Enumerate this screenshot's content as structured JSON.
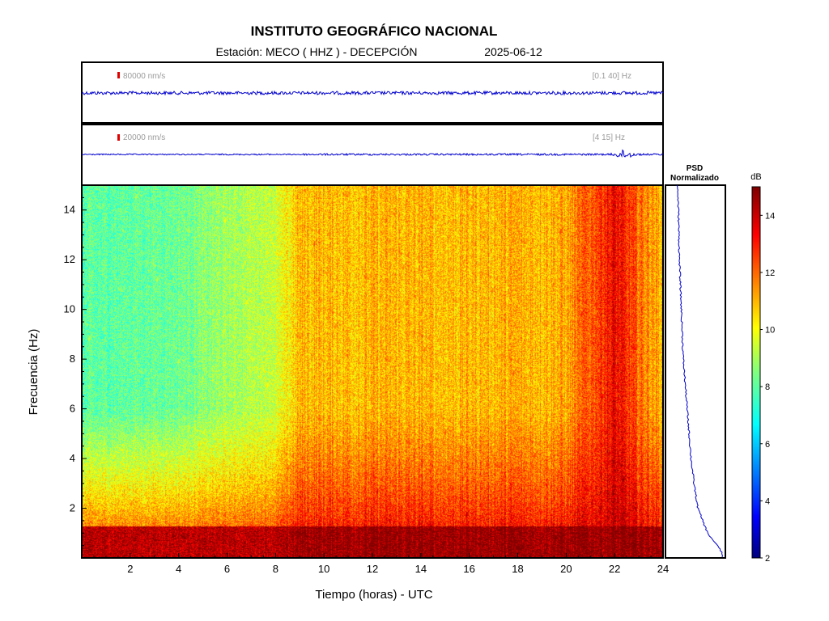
{
  "header": {
    "title": "INSTITUTO GEOGRÁFICO NACIONAL",
    "station_label": "Estación:  MECO ( HHZ ) - DECEPCIÓN",
    "date": "2025-06-12"
  },
  "traces": [
    {
      "scale_label": "80000 nm/s",
      "band_label": "[0.1 40] Hz",
      "scale_bar_color": "#e00000",
      "trace_color": "#0000cc"
    },
    {
      "scale_label": "20000 nm/s",
      "band_label": "[4 15] Hz",
      "scale_bar_color": "#e00000",
      "trace_color": "#0000cc"
    }
  ],
  "psd": {
    "label_line1": "PSD",
    "label_line2": "Normalizado",
    "line_color": "#0000cc"
  },
  "colorbar": {
    "unit": "dB",
    "range": [
      2,
      15
    ],
    "ticks": [
      "2",
      "4",
      "6",
      "8",
      "10",
      "12",
      "14"
    ]
  },
  "chart_data": {
    "type": "heatmap",
    "title": "INSTITUTO GEOGRÁFICO NACIONAL",
    "xlabel": "Tiempo (horas) - UTC",
    "ylabel": "Frecuencia  (Hz)",
    "xlim": [
      0,
      24
    ],
    "ylim": [
      0,
      15
    ],
    "xticks": [
      "2",
      "4",
      "6",
      "8",
      "10",
      "12",
      "14",
      "16",
      "18",
      "20",
      "22",
      "24"
    ],
    "yticks": [
      "2",
      "4",
      "6",
      "8",
      "10",
      "12",
      "14"
    ],
    "colorscale": "jet",
    "z_range_db": [
      2,
      15
    ],
    "grid": false,
    "power_profile": {
      "description_time_hours": [
        0,
        4,
        8,
        9,
        12,
        16,
        20,
        22,
        23,
        24
      ],
      "high_freq_level_db": [
        8.0,
        8.3,
        9.5,
        11.0,
        11.0,
        11.0,
        11.2,
        13.5,
        12.0,
        11.0
      ],
      "low_freq_level_db": [
        14.0,
        14.0,
        14.0,
        14.5,
        14.5,
        14.5,
        14.5,
        14.5,
        14.5,
        14.5
      ]
    },
    "psd_normalized": {
      "freq_hz": [
        15,
        14,
        12,
        10,
        8,
        6,
        4,
        3,
        2,
        1,
        0.5,
        0.2
      ],
      "value": [
        0.08,
        0.1,
        0.12,
        0.16,
        0.2,
        0.28,
        0.36,
        0.42,
        0.5,
        0.7,
        0.9,
        1.0
      ]
    }
  }
}
